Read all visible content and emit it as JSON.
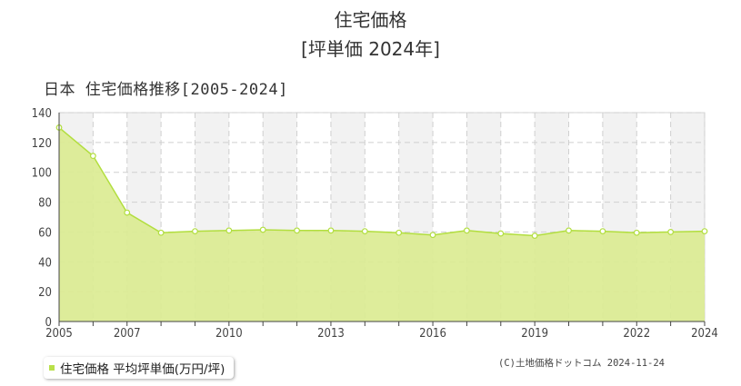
{
  "header": {
    "title": "住宅価格",
    "subtitle": "[坪単価 2024年]"
  },
  "chart_heading": "日本 住宅価格推移[2005-2024]",
  "legend": {
    "label": "住宅価格 平均坪単価(万円/坪)"
  },
  "copyright": "(C)土地価格ドットコム 2024-11-24",
  "colors": {
    "fill": "#dbeb92",
    "line": "#b2de3f",
    "marker_fill": "#ffffff",
    "grid": "#cfcfcf",
    "plot_bg_alt": "#f2f2f2"
  },
  "chart_data": {
    "type": "area",
    "x": [
      2005,
      2006,
      2007,
      2008,
      2009,
      2010,
      2011,
      2012,
      2013,
      2014,
      2015,
      2016,
      2017,
      2018,
      2019,
      2020,
      2021,
      2022,
      2023,
      2024
    ],
    "series": [
      {
        "values": [
          130,
          111,
          73,
          59.5,
          60.5,
          61,
          61.5,
          61,
          61,
          60.5,
          59.5,
          58,
          61,
          59,
          57.5,
          61,
          60.5,
          59.5,
          60,
          60.5
        ]
      }
    ],
    "x_tick_labels": [
      2005,
      2007,
      2010,
      2013,
      2016,
      2019,
      2022,
      2024
    ],
    "ylim": [
      0,
      140
    ],
    "y_ticks": [
      0,
      20,
      40,
      60,
      80,
      100,
      120,
      140
    ],
    "xlim": [
      2005,
      2024
    ],
    "grid": true
  }
}
